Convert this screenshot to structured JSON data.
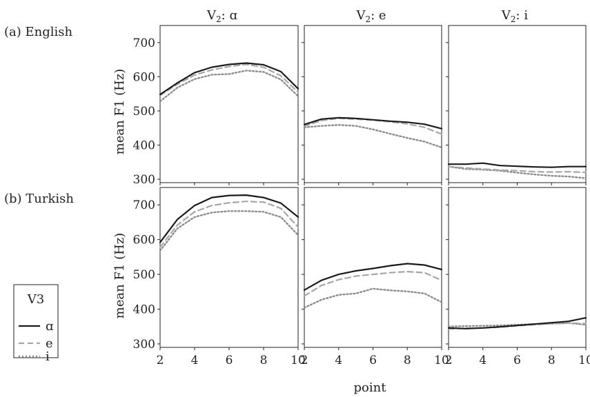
{
  "chart_data": {
    "type": "line",
    "x_label": "point",
    "y_label": "mean F1 (Hz)",
    "x_ticks": [
      2,
      4,
      6,
      8,
      10
    ],
    "x_range": [
      2,
      10
    ],
    "y_range": [
      290,
      750
    ],
    "y_ticks": [
      300,
      400,
      500,
      600,
      700
    ],
    "grid": false,
    "column_headers": [
      {
        "base": "V",
        "sub": "2",
        "vowel": ": ɑ"
      },
      {
        "base": "V",
        "sub": "2",
        "vowel": ": e"
      },
      {
        "base": "V",
        "sub": "2",
        "vowel": ": i"
      }
    ],
    "row_labels": [
      "(a) English",
      "(b) Turkish"
    ],
    "legend": {
      "title": "V3",
      "placement": "lower-left",
      "entries": [
        {
          "label": "ɑ",
          "color": "#1a1a1a",
          "dash": "solid"
        },
        {
          "label": "e",
          "color": "#a6a6a6",
          "dash": "dashed"
        },
        {
          "label": "i",
          "color": "#8c8c8c",
          "dash": "dotted"
        }
      ]
    },
    "x": [
      2,
      3,
      4,
      5,
      6,
      7,
      8,
      9,
      10
    ],
    "panels": [
      {
        "row": "(a) English",
        "column": "V2: ɑ",
        "series": [
          {
            "name": "ɑ",
            "values": [
              548,
              582,
              612,
              628,
              636,
              640,
              635,
              615,
              565
            ]
          },
          {
            "name": "e",
            "values": [
              545,
              578,
              605,
              620,
              630,
              636,
              628,
              603,
              555
            ]
          },
          {
            "name": "i",
            "values": [
              528,
              568,
              593,
              606,
              608,
              618,
              614,
              592,
              543
            ]
          }
        ]
      },
      {
        "row": "(a) English",
        "column": "V2: e",
        "series": [
          {
            "name": "ɑ",
            "values": [
              460,
              476,
              480,
              478,
              474,
              470,
              467,
              461,
              448
            ]
          },
          {
            "name": "e",
            "values": [
              455,
              472,
              478,
              476,
              473,
              468,
              462,
              452,
              432
            ]
          },
          {
            "name": "i",
            "values": [
              452,
              456,
              459,
              456,
              446,
              433,
              421,
              410,
              393
            ]
          }
        ]
      },
      {
        "row": "(a) English",
        "column": "V2: i",
        "series": [
          {
            "name": "ɑ",
            "values": [
              344,
              344,
              347,
              340,
              338,
              336,
              335,
              337,
              337
            ]
          },
          {
            "name": "e",
            "values": [
              337,
              333,
              330,
              327,
              325,
              322,
              321,
              322,
              320
            ]
          },
          {
            "name": "i",
            "values": [
              337,
              330,
              328,
              325,
              319,
              314,
              310,
              308,
              303
            ]
          }
        ]
      },
      {
        "row": "(b) Turkish",
        "column": "V2: ɑ",
        "series": [
          {
            "name": "ɑ",
            "values": [
              592,
              658,
              698,
              721,
              727,
              728,
              721,
              705,
              665
            ]
          },
          {
            "name": "e",
            "values": [
              578,
              642,
              680,
              698,
              706,
              710,
              708,
              690,
              636
            ]
          },
          {
            "name": "i",
            "values": [
              568,
              632,
              665,
              678,
              682,
              682,
              680,
              665,
              613
            ]
          }
        ]
      },
      {
        "row": "(b) Turkish",
        "column": "V2: e",
        "series": [
          {
            "name": "ɑ",
            "values": [
              455,
              483,
              500,
              510,
              517,
              525,
              531,
              527,
              514
            ]
          },
          {
            "name": "e",
            "values": [
              438,
              468,
              485,
              495,
              500,
              505,
              508,
              505,
              483
            ]
          },
          {
            "name": "i",
            "values": [
              404,
              427,
              441,
              445,
              459,
              454,
              451,
              445,
              420
            ]
          }
        ]
      },
      {
        "row": "(b) Turkish",
        "column": "V2: i",
        "series": [
          {
            "name": "ɑ",
            "values": [
              346,
              344,
              346,
              349,
              353,
              357,
              361,
              365,
              375
            ]
          },
          {
            "name": "e",
            "values": [
              343,
              345,
              346,
              348,
              352,
              355,
              358,
              360,
              358
            ]
          },
          {
            "name": "i",
            "values": [
              350,
              351,
              352,
              353,
              355,
              357,
              358,
              360,
              355
            ]
          }
        ]
      }
    ]
  }
}
